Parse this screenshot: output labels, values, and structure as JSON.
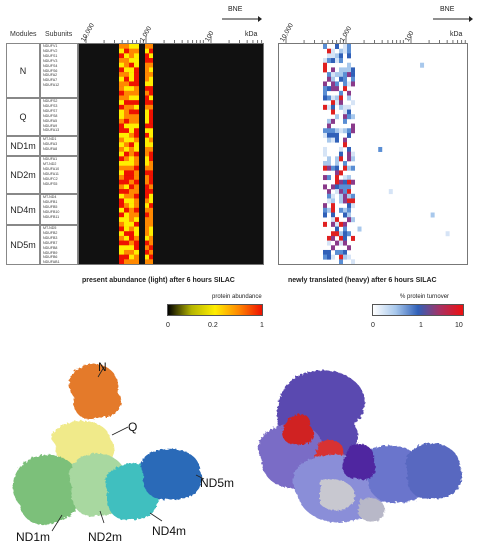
{
  "header": {
    "modules": "Modules",
    "subunits": "Subunits"
  },
  "axis": {
    "ticks": [
      "10,000",
      "1 000",
      "100"
    ],
    "unit": "kDa",
    "direction": "BNE"
  },
  "modules": [
    {
      "name": "N",
      "color": "#f4a46f"
    },
    {
      "name": "Q",
      "color": "#fff1a8"
    },
    {
      "name": "ND1m",
      "color": "#9ccf85"
    },
    {
      "name": "ND2m",
      "color": "#c7e4b6"
    },
    {
      "name": "ND4m",
      "color": "#a9c9ea"
    },
    {
      "name": "ND5m",
      "color": "#7ea6dc"
    }
  ],
  "subunits": [
    [
      "NDUFV1",
      "NDUFV2",
      "NDUFS1",
      "NDUFV3",
      "NDUFS4",
      "NDUFS6",
      "NDUFA2",
      "NDUFA7",
      "NDUFA12"
    ],
    [
      "NDUFS2",
      "NDUFS3",
      "NDUFS7",
      "NDUFS8",
      "NDUFA5",
      "NDUFA9",
      "NDUFA13"
    ],
    [
      "MT-ND1",
      "NDUFA3",
      "NDUFA8"
    ],
    [
      "NDUFA1",
      "MT-ND2",
      "NDUFA10",
      "NDUFA11",
      "NDUFC2",
      "NDUFS5"
    ],
    [
      "MT-ND4",
      "NDUFB1",
      "NDUFB5",
      "NDUFB10",
      "NDUFB11"
    ],
    [
      "MT-ND5",
      "NDUFB2",
      "NDUFB3",
      "NDUFB7",
      "NDUFB8",
      "NDUFB9",
      "NDUFB6",
      "NDUFAB1"
    ]
  ],
  "captions": {
    "light": "present abundance (light) after 6 hours SILAC",
    "heavy": "newly translated (heavy) after 6 hours SILAC"
  },
  "colorbars": {
    "abundance": {
      "title": "protein abundance",
      "labels": [
        "0",
        "0.2",
        "1"
      ],
      "stops": [
        "#000000",
        "#b5b500",
        "#ffee00",
        "#ff8800",
        "#ee1100"
      ]
    },
    "turnover": {
      "title": "% protein turnover",
      "labels": [
        "0",
        "1",
        "10"
      ],
      "stops": [
        "#ffffff",
        "#a8c8ec",
        "#3060b8",
        "#aa3060",
        "#ee1010"
      ]
    }
  },
  "structure_labels": [
    "N",
    "Q",
    "ND1m",
    "ND2m",
    "ND4m",
    "ND5m"
  ]
}
